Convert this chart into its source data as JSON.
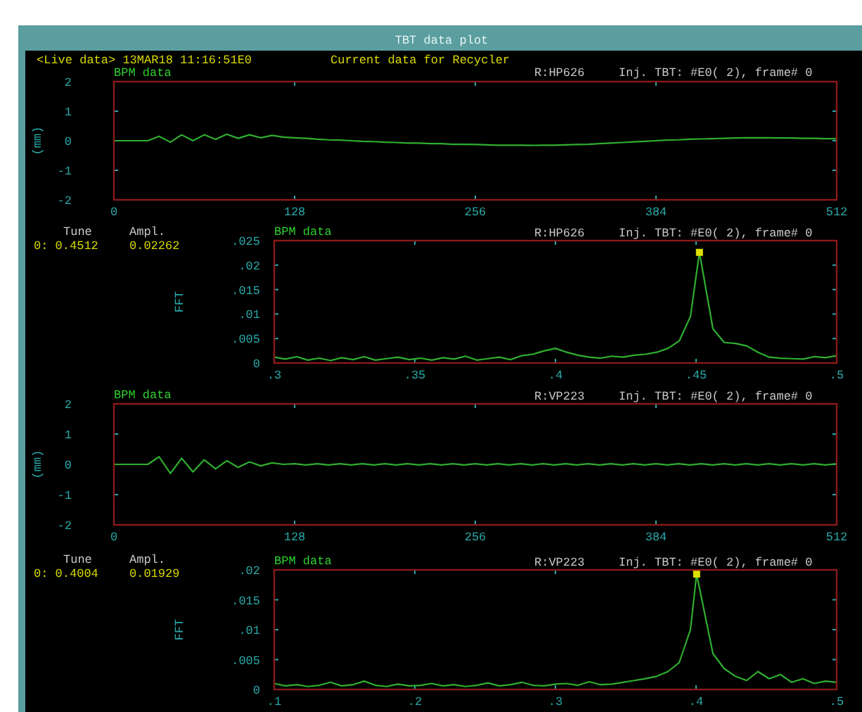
{
  "chart_data": [
    {
      "type": "line",
      "title": "BPM data",
      "ylabel": "(mm)",
      "annotations": [
        "TBT data plot",
        "<Live data> 13MAR18 11:16:51E0",
        "Current data for Recycler",
        "R:HP626",
        "Inj. TBT: #E0( 2), frame# 0"
      ],
      "xlim": [
        0,
        512
      ],
      "xticks": [
        0,
        128,
        256,
        384,
        512
      ],
      "ylim": [
        -2,
        2
      ],
      "yticks": [
        -2,
        -1,
        0,
        1,
        2
      ],
      "grid": false,
      "series": [
        {
          "color": "#2fae2f",
          "x": [
            0,
            8,
            16,
            24,
            32,
            40,
            48,
            56,
            64,
            72,
            80,
            88,
            96,
            104,
            112,
            120,
            128,
            136,
            144,
            152,
            160,
            168,
            176,
            184,
            192,
            200,
            208,
            216,
            224,
            232,
            240,
            248,
            256,
            264,
            272,
            280,
            288,
            296,
            304,
            312,
            320,
            328,
            336,
            344,
            352,
            360,
            368,
            376,
            384,
            392,
            400,
            408,
            416,
            424,
            432,
            440,
            448,
            456,
            464,
            472,
            480,
            488,
            496,
            504,
            512
          ],
          "values": [
            0,
            0,
            0,
            0,
            0.15,
            -0.05,
            0.2,
            0,
            0.2,
            0.05,
            0.22,
            0.08,
            0.2,
            0.1,
            0.18,
            0.12,
            0.1,
            0.08,
            0.05,
            0.03,
            0.02,
            0,
            -0.02,
            -0.03,
            -0.05,
            -0.06,
            -0.08,
            -0.08,
            -0.1,
            -0.1,
            -0.12,
            -0.12,
            -0.13,
            -0.14,
            -0.15,
            -0.15,
            -0.15,
            -0.16,
            -0.15,
            -0.15,
            -0.14,
            -0.13,
            -0.12,
            -0.1,
            -0.08,
            -0.06,
            -0.04,
            -0.02,
            0,
            0.02,
            0.03,
            0.05,
            0.06,
            0.07,
            0.08,
            0.09,
            0.1,
            0.1,
            0.1,
            0.09,
            0.09,
            0.08,
            0.08,
            0.07,
            0.07
          ]
        }
      ]
    },
    {
      "type": "line",
      "title": "BPM data",
      "ylabel": "FFT",
      "annotations": [
        "R:HP626",
        "Inj. TBT: #E0( 2), frame# 0",
        "Tune",
        "Ampl.",
        "0: 0.4512",
        "0.02262"
      ],
      "xlim": [
        0.3,
        0.5
      ],
      "xticks": [
        {
          "value": 0.3,
          "label": ".3"
        },
        {
          "value": 0.35,
          "label": ".35"
        },
        {
          "value": 0.4,
          "label": ".4"
        },
        {
          "value": 0.45,
          "label": ".45"
        },
        {
          "value": 0.5,
          "label": ".5"
        }
      ],
      "ylim": [
        0,
        0.025
      ],
      "yticks": [
        0,
        {
          "value": 0.005,
          "label": ".005"
        },
        {
          "value": 0.01,
          "label": ".01"
        },
        {
          "value": 0.015,
          "label": ".015"
        },
        {
          "value": 0.02,
          "label": ".02"
        },
        {
          "value": 0.025,
          "label": ".025"
        }
      ],
      "grid": false,
      "series": [
        {
          "color": "#2fae2f",
          "x": [
            0.3,
            0.304,
            0.308,
            0.312,
            0.316,
            0.32,
            0.324,
            0.328,
            0.332,
            0.336,
            0.34,
            0.344,
            0.348,
            0.352,
            0.356,
            0.36,
            0.364,
            0.368,
            0.372,
            0.376,
            0.38,
            0.384,
            0.388,
            0.392,
            0.396,
            0.4,
            0.404,
            0.408,
            0.412,
            0.416,
            0.42,
            0.424,
            0.428,
            0.432,
            0.436,
            0.44,
            0.444,
            0.448,
            0.4512,
            0.456,
            0.46,
            0.464,
            0.468,
            0.472,
            0.476,
            0.48,
            0.484,
            0.488,
            0.492,
            0.496,
            0.5
          ],
          "values": [
            0.0012,
            0.0008,
            0.0013,
            0.0006,
            0.001,
            0.0005,
            0.0011,
            0.0007,
            0.0013,
            0.0006,
            0.0009,
            0.0012,
            0.0007,
            0.001,
            0.0006,
            0.0011,
            0.0008,
            0.0014,
            0.0006,
            0.0009,
            0.0012,
            0.0007,
            0.0015,
            0.0018,
            0.0025,
            0.003,
            0.0022,
            0.0016,
            0.0012,
            0.001,
            0.0014,
            0.0012,
            0.0016,
            0.0018,
            0.0022,
            0.003,
            0.0045,
            0.0095,
            0.0226,
            0.007,
            0.0042,
            0.004,
            0.0035,
            0.0022,
            0.0012,
            0.001,
            0.0009,
            0.0008,
            0.0013,
            0.0011,
            0.0015
          ]
        },
        {
          "type": "scatter",
          "color": "#e0e000",
          "marker": "square",
          "x": [
            0.4512
          ],
          "values": [
            0.0226
          ]
        }
      ]
    },
    {
      "type": "line",
      "title": "BPM data",
      "ylabel": "(mm)",
      "annotations": [
        "R:VP223",
        "Inj. TBT: #E0( 2), frame# 0"
      ],
      "xlim": [
        0,
        512
      ],
      "xticks": [
        0,
        128,
        256,
        384,
        512
      ],
      "ylim": [
        -2,
        2
      ],
      "yticks": [
        -2,
        -1,
        0,
        1,
        2
      ],
      "grid": false,
      "series": [
        {
          "color": "#2fae2f",
          "x": [
            0,
            8,
            16,
            24,
            32,
            40,
            48,
            56,
            64,
            72,
            80,
            88,
            96,
            104,
            112,
            120,
            128,
            136,
            144,
            152,
            160,
            168,
            176,
            184,
            192,
            200,
            208,
            216,
            224,
            232,
            240,
            248,
            256,
            264,
            272,
            280,
            288,
            296,
            304,
            312,
            320,
            328,
            336,
            344,
            352,
            360,
            368,
            376,
            384,
            392,
            400,
            408,
            416,
            424,
            432,
            440,
            448,
            456,
            464,
            472,
            480,
            488,
            496,
            504,
            512
          ],
          "values": [
            0,
            0,
            0,
            0,
            0.25,
            -0.3,
            0.2,
            -0.25,
            0.15,
            -0.15,
            0.12,
            -0.1,
            0.08,
            -0.05,
            0.05,
            0,
            0.02,
            -0.02,
            0.02,
            -0.02,
            0.02,
            -0.02,
            0.02,
            -0.02,
            0.02,
            -0.02,
            0.02,
            -0.02,
            0.02,
            -0.02,
            0.02,
            -0.02,
            0.02,
            -0.02,
            0.02,
            -0.02,
            0.02,
            -0.02,
            0.02,
            -0.02,
            0.02,
            -0.02,
            0.02,
            -0.02,
            0.02,
            -0.02,
            0.02,
            -0.02,
            0.02,
            -0.02,
            0.02,
            -0.02,
            0.02,
            -0.02,
            0.02,
            -0.02,
            0.02,
            -0.02,
            0.02,
            -0.02,
            0.02,
            -0.02,
            0.02,
            -0.02,
            0.02
          ]
        }
      ]
    },
    {
      "type": "line",
      "title": "BPM data",
      "ylabel": "FFT",
      "annotations": [
        "R:VP223",
        "Inj. TBT: #E0( 2), frame# 0",
        "Tune",
        "Ampl.",
        "0: 0.4004",
        "0.01929"
      ],
      "xlim": [
        0.1,
        0.5
      ],
      "xticks": [
        {
          "value": 0.1,
          "label": ".1"
        },
        {
          "value": 0.2,
          "label": ".2"
        },
        {
          "value": 0.3,
          "label": ".3"
        },
        {
          "value": 0.4,
          "label": ".4"
        },
        {
          "value": 0.5,
          "label": ".5"
        }
      ],
      "ylim": [
        0,
        0.02
      ],
      "yticks": [
        0,
        {
          "value": 0.005,
          "label": ".005"
        },
        {
          "value": 0.01,
          "label": ".01"
        },
        {
          "value": 0.015,
          "label": ".015"
        },
        {
          "value": 0.02,
          "label": ".02"
        }
      ],
      "grid": false,
      "series": [
        {
          "color": "#2fae2f",
          "x": [
            0.1,
            0.108,
            0.116,
            0.124,
            0.132,
            0.14,
            0.148,
            0.156,
            0.164,
            0.172,
            0.18,
            0.188,
            0.196,
            0.204,
            0.212,
            0.22,
            0.228,
            0.236,
            0.244,
            0.252,
            0.26,
            0.268,
            0.276,
            0.284,
            0.292,
            0.3,
            0.308,
            0.316,
            0.324,
            0.332,
            0.34,
            0.348,
            0.356,
            0.364,
            0.372,
            0.38,
            0.388,
            0.396,
            0.4004,
            0.412,
            0.42,
            0.428,
            0.436,
            0.444,
            0.452,
            0.46,
            0.468,
            0.476,
            0.484,
            0.492,
            0.5
          ],
          "values": [
            0.001,
            0.0006,
            0.0008,
            0.0005,
            0.0007,
            0.0012,
            0.0006,
            0.0008,
            0.0014,
            0.0007,
            0.0005,
            0.0009,
            0.0006,
            0.0007,
            0.001,
            0.0006,
            0.0008,
            0.0005,
            0.0007,
            0.0011,
            0.0006,
            0.0008,
            0.0012,
            0.0007,
            0.0006,
            0.0009,
            0.001,
            0.0007,
            0.0013,
            0.0008,
            0.0009,
            0.0012,
            0.0015,
            0.0018,
            0.0022,
            0.003,
            0.0045,
            0.01,
            0.0193,
            0.006,
            0.0035,
            0.0022,
            0.0015,
            0.003,
            0.0018,
            0.0025,
            0.0012,
            0.0018,
            0.001,
            0.0014,
            0.0012
          ]
        },
        {
          "type": "scatter",
          "color": "#e0e000",
          "marker": "square",
          "x": [
            0.4004
          ],
          "values": [
            0.0193
          ]
        }
      ]
    }
  ]
}
